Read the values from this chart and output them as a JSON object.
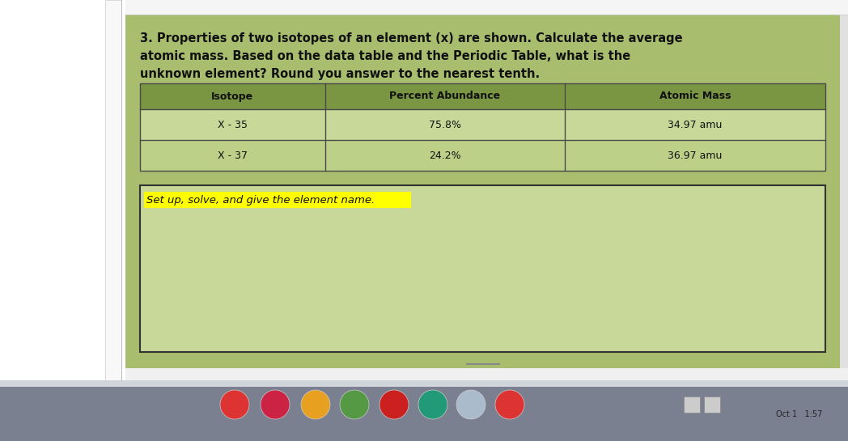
{
  "title_line1": "3. Properties of two isotopes of an element (x) are shown. Calculate the average",
  "title_line2": "atomic mass. Based on the data table and the Periodic Table, what is the",
  "title_line3": "unknown element? Round you answer to the nearest tenth.",
  "table_headers": [
    "Isotope",
    "Percent Abundance",
    "Atomic Mass"
  ],
  "table_rows": [
    [
      "X - 35",
      "75.8%",
      "34.97 amu"
    ],
    [
      "X - 37",
      "24.2%",
      "36.97 amu"
    ]
  ],
  "answer_box_text": "Set up, solve, and give the element name.",
  "bg_main": "#f0f0f0",
  "bg_green": "#a8be6e",
  "table_header_bg": "#7a9642",
  "table_row_bg": "#c8d898",
  "table_row2_bg": "#bcd088",
  "table_border_color": "#4a4a4a",
  "answer_box_bg": "#c8d898",
  "answer_highlight_color": "#ffff00",
  "title_color": "#111111",
  "table_text_color": "#111111",
  "taskbar_color": "#7a8090",
  "taskbar_light": "#d0d5dc",
  "ruler_bg": "#ffffff",
  "left_sidebar_bg": "#e8e8e8",
  "right_edge_color": "#d0d0d0"
}
